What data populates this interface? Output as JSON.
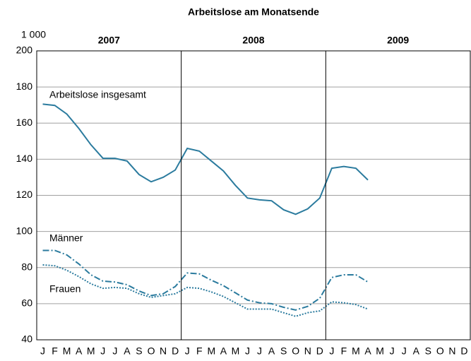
{
  "chart_data": {
    "type": "line",
    "title": "Arbeitslose am Monatsende",
    "unit_label": "1 000",
    "year_labels": [
      "2007",
      "2008",
      "2009"
    ],
    "categories": [
      "J",
      "F",
      "M",
      "A",
      "M",
      "J",
      "J",
      "A",
      "S",
      "O",
      "N",
      "D",
      "J",
      "F",
      "M",
      "A",
      "M",
      "J",
      "J",
      "A",
      "S",
      "O",
      "N",
      "D",
      "J",
      "F",
      "M",
      "A",
      "M",
      "J",
      "J",
      "A",
      "S",
      "O",
      "N",
      "D"
    ],
    "series": [
      {
        "name": "Arbeitslose insgesamt",
        "color": "#2b7b9e",
        "dash": "solid",
        "values": [
          170.5,
          169.8,
          165,
          157,
          148,
          140.5,
          140.5,
          139,
          131.5,
          127.5,
          130,
          134,
          146,
          144.5,
          139,
          133.5,
          125.5,
          118.5,
          117.5,
          117,
          112,
          109.5,
          112.5,
          118.5,
          135,
          136,
          135,
          128.5,
          null,
          null,
          null,
          null,
          null,
          null,
          null,
          null
        ]
      },
      {
        "name": "Männer",
        "color": "#2b7b9e",
        "dash": "dashdot",
        "values": [
          89.5,
          89.5,
          87,
          82,
          76,
          72.5,
          72,
          70.5,
          67,
          64.5,
          65.5,
          69.5,
          77,
          76.5,
          73,
          70,
          66,
          62,
          60.5,
          60,
          58,
          56.5,
          58.5,
          63,
          74.5,
          76,
          76,
          72,
          null,
          null,
          null,
          null,
          null,
          null,
          null,
          null
        ]
      },
      {
        "name": "Frauen",
        "color": "#2b7b9e",
        "dash": "dotted",
        "values": [
          81.5,
          81,
          78.5,
          75,
          71,
          68.5,
          69,
          68.5,
          65.5,
          63.5,
          64.5,
          65.5,
          69,
          68.5,
          66.5,
          64,
          60.5,
          57,
          57,
          57,
          55,
          53,
          55,
          56,
          61,
          60.5,
          59.5,
          57,
          null,
          null,
          null,
          null,
          null,
          null,
          null,
          null
        ]
      }
    ],
    "ylim": [
      40,
      200
    ],
    "yticks": [
      40,
      60,
      80,
      100,
      120,
      140,
      160,
      180,
      200
    ],
    "grid": true
  }
}
